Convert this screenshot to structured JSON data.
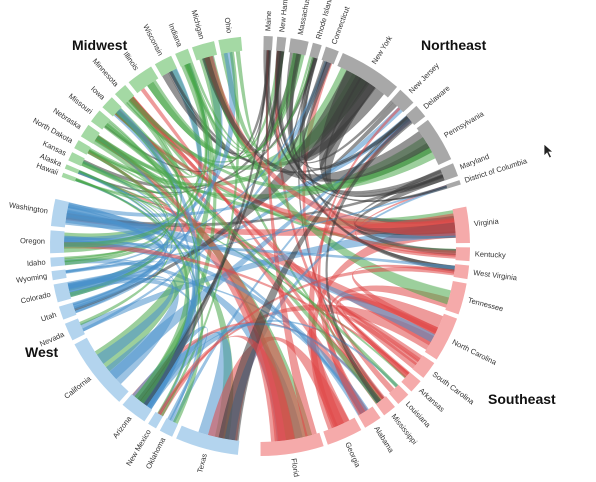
{
  "regions": [
    {
      "id": "midwest",
      "label": "Midwest",
      "color": "#a4d9a4",
      "chord": "#4aa84a"
    },
    {
      "id": "northeast",
      "label": "Northeast",
      "color": "#a8a8a8",
      "chord": "#3a3a3a"
    },
    {
      "id": "southeast",
      "label": "Southeast",
      "color": "#f5aaaa",
      "chord": "#e04848"
    },
    {
      "id": "west",
      "label": "West",
      "color": "#b3d4ee",
      "chord": "#4a92cc"
    }
  ],
  "states": [
    {
      "name": "Maine",
      "region": "northeast"
    },
    {
      "name": "New Hampshire",
      "region": "northeast"
    },
    {
      "name": "Massachusetts",
      "region": "northeast"
    },
    {
      "name": "Rhode Island",
      "region": "northeast"
    },
    {
      "name": "Connecticut",
      "region": "northeast"
    },
    {
      "name": "New York",
      "region": "northeast"
    },
    {
      "name": "New Jersey",
      "region": "northeast"
    },
    {
      "name": "Delaware",
      "region": "northeast"
    },
    {
      "name": "Pennsylvania",
      "region": "northeast"
    },
    {
      "name": "Maryland",
      "region": "northeast"
    },
    {
      "name": "District of Columbia",
      "region": "northeast"
    },
    {
      "name": "Virginia",
      "region": "southeast"
    },
    {
      "name": "Kentucky",
      "region": "southeast"
    },
    {
      "name": "West Virginia",
      "region": "southeast"
    },
    {
      "name": "Tennessee",
      "region": "southeast"
    },
    {
      "name": "North Carolina",
      "region": "southeast"
    },
    {
      "name": "South Carolina",
      "region": "southeast"
    },
    {
      "name": "Arkansas",
      "region": "southeast"
    },
    {
      "name": "Louisiana",
      "region": "southeast"
    },
    {
      "name": "Mississippi",
      "region": "southeast"
    },
    {
      "name": "Alabama",
      "region": "southeast"
    },
    {
      "name": "Georgia",
      "region": "southeast"
    },
    {
      "name": "Florida",
      "region": "southeast"
    },
    {
      "name": "Texas",
      "region": "west"
    },
    {
      "name": "Oklahoma",
      "region": "west"
    },
    {
      "name": "New Mexico",
      "region": "west"
    },
    {
      "name": "Arizona",
      "region": "west"
    },
    {
      "name": "California",
      "region": "west"
    },
    {
      "name": "Nevada",
      "region": "west"
    },
    {
      "name": "Utah",
      "region": "west"
    },
    {
      "name": "Colorado",
      "region": "west"
    },
    {
      "name": "Wyoming",
      "region": "west"
    },
    {
      "name": "Idaho",
      "region": "west"
    },
    {
      "name": "Oregon",
      "region": "west"
    },
    {
      "name": "Washington",
      "region": "west"
    },
    {
      "name": "Hawaii",
      "region": "midwest"
    },
    {
      "name": "Alaska",
      "region": "midwest"
    },
    {
      "name": "Kansas",
      "region": "midwest"
    },
    {
      "name": "North Dakota",
      "region": "midwest"
    },
    {
      "name": "Nebraska",
      "region": "midwest"
    },
    {
      "name": "Missouri",
      "region": "midwest"
    },
    {
      "name": "Iowa",
      "region": "midwest"
    },
    {
      "name": "Minnesota",
      "region": "midwest"
    },
    {
      "name": "Illinois",
      "region": "midwest"
    },
    {
      "name": "Wisconsin",
      "region": "midwest"
    },
    {
      "name": "Indiana",
      "region": "midwest"
    },
    {
      "name": "Michigan",
      "region": "midwest"
    },
    {
      "name": "Ohio",
      "region": "midwest"
    }
  ]
}
